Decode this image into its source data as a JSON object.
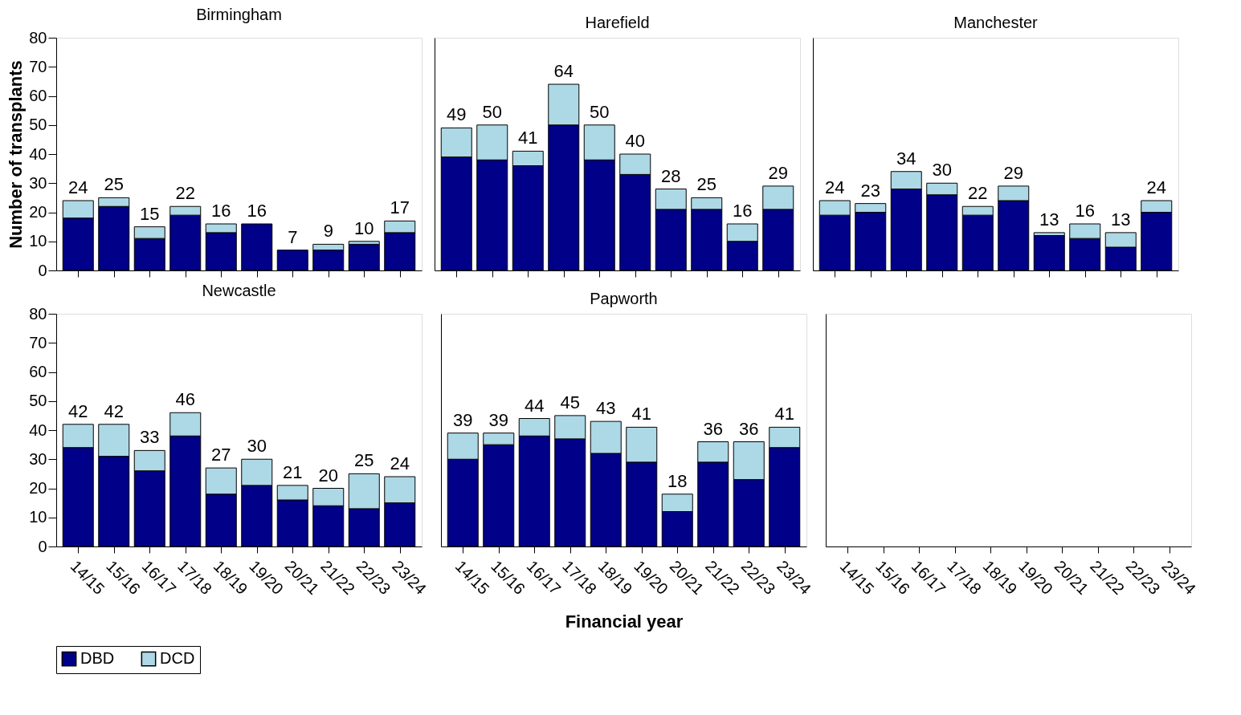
{
  "chart_data": [
    {
      "type": "bar",
      "title": "Birmingham",
      "legend": "bottom",
      "ylabel": "Number of transplants",
      "categories": [
        "14/15",
        "15/16",
        "16/17",
        "17/18",
        "18/19",
        "19/20",
        "20/21",
        "21/22",
        "22/23",
        "23/24"
      ],
      "stacked": true,
      "ylim": [
        0,
        80
      ],
      "yticks": [
        0,
        10,
        20,
        30,
        40,
        50,
        60,
        70,
        80
      ],
      "tick_labels": "y",
      "series": [
        {
          "name": "DBD",
          "color": "#000088",
          "values": [
            18,
            22,
            11,
            19,
            13,
            16,
            7,
            7,
            9,
            13
          ]
        },
        {
          "name": "DCD",
          "color": "#add8e6",
          "values": [
            6,
            3,
            4,
            3,
            3,
            0,
            0,
            2,
            1,
            4
          ]
        }
      ],
      "totals": [
        "24",
        "25",
        "15",
        "22",
        "16",
        "16",
        "7",
        "9",
        "10",
        "17"
      ]
    },
    {
      "type": "bar",
      "title": "Harefield",
      "legend": "bottom",
      "categories": [
        "14/15",
        "15/16",
        "16/17",
        "17/18",
        "18/19",
        "19/20",
        "20/21",
        "21/22",
        "22/23",
        "23/24"
      ],
      "stacked": true,
      "ylim": [
        0,
        80
      ],
      "tick_labels": false,
      "series": [
        {
          "name": "DBD",
          "color": "#000088",
          "values": [
            39,
            38,
            36,
            50,
            38,
            33,
            21,
            21,
            10,
            21
          ]
        },
        {
          "name": "DCD",
          "color": "#add8e6",
          "values": [
            10,
            12,
            5,
            14,
            12,
            7,
            7,
            4,
            6,
            8
          ]
        }
      ],
      "totals": [
        "49",
        "50",
        "41",
        "64",
        "50",
        "40",
        "28",
        "25",
        "16",
        "29"
      ]
    },
    {
      "type": "bar",
      "title": "Manchester",
      "legend": "bottom",
      "categories": [
        "14/15",
        "15/16",
        "16/17",
        "17/18",
        "18/19",
        "19/20",
        "20/21",
        "21/22",
        "22/23",
        "23/24"
      ],
      "stacked": true,
      "ylim": [
        0,
        80
      ],
      "tick_labels": false,
      "series": [
        {
          "name": "DBD",
          "color": "#000088",
          "values": [
            19,
            20,
            28,
            26,
            19,
            24,
            12,
            11,
            8,
            20
          ]
        },
        {
          "name": "DCD",
          "color": "#add8e6",
          "values": [
            5,
            3,
            6,
            4,
            3,
            5,
            1,
            5,
            5,
            4
          ]
        }
      ],
      "totals": [
        "24",
        "23",
        "34",
        "30",
        "22",
        "29",
        "13",
        "16",
        "13",
        "24"
      ]
    },
    {
      "type": "bar",
      "title": "Newcastle",
      "legend": "bottom",
      "categories": [
        "14/15",
        "15/16",
        "16/17",
        "17/18",
        "18/19",
        "19/20",
        "20/21",
        "21/22",
        "22/23",
        "23/24"
      ],
      "stacked": true,
      "ylim": [
        0,
        80
      ],
      "yticks": [
        0,
        10,
        20,
        30,
        40,
        50,
        60,
        70,
        80
      ],
      "series": [
        {
          "name": "DBD",
          "color": "#000088",
          "values": [
            34,
            31,
            26,
            38,
            18,
            21,
            16,
            14,
            13,
            15
          ]
        },
        {
          "name": "DCD",
          "color": "#add8e6",
          "values": [
            8,
            11,
            7,
            8,
            9,
            9,
            5,
            6,
            12,
            9
          ]
        }
      ],
      "totals": [
        "42",
        "42",
        "33",
        "46",
        "27",
        "30",
        "21",
        "20",
        "25",
        "24"
      ]
    },
    {
      "type": "bar",
      "title": "Papworth",
      "xlabel": "Financial year",
      "legend": "bottom",
      "categories": [
        "14/15",
        "15/16",
        "16/17",
        "17/18",
        "18/19",
        "19/20",
        "20/21",
        "21/22",
        "22/23",
        "23/24"
      ],
      "stacked": true,
      "ylim": [
        0,
        80
      ],
      "tick_labels": "x",
      "series": [
        {
          "name": "DBD",
          "color": "#000088",
          "values": [
            30,
            35,
            38,
            37,
            32,
            29,
            12,
            29,
            23,
            34
          ]
        },
        {
          "name": "DCD",
          "color": "#add8e6",
          "values": [
            9,
            4,
            6,
            8,
            11,
            12,
            6,
            7,
            13,
            7
          ]
        }
      ],
      "totals": [
        "39",
        "39",
        "44",
        "45",
        "43",
        "41",
        "18",
        "36",
        "36",
        "41"
      ]
    },
    {
      "type": "bar",
      "categories": [
        "14/15",
        "15/16",
        "16/17",
        "17/18",
        "18/19",
        "19/20",
        "20/21",
        "21/22",
        "22/23",
        "23/24"
      ],
      "stacked": true,
      "ylim": [
        0,
        80
      ],
      "tick_labels": "x"
    }
  ]
}
